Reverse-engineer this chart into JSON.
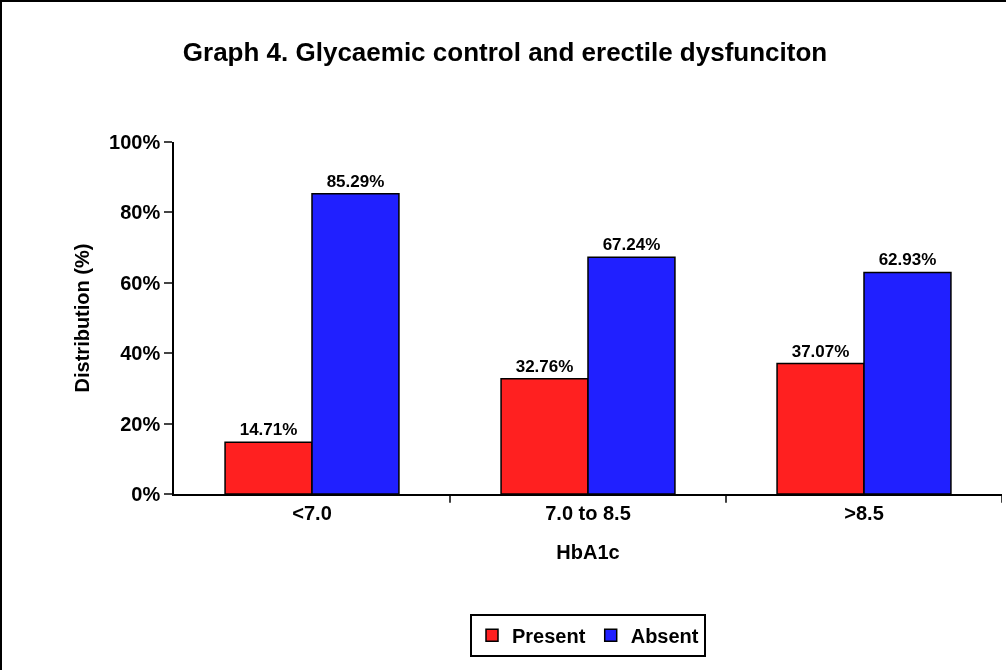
{
  "chart_data": {
    "type": "bar",
    "title": "Graph 4. Glycaemic control and erectile dysfunciton",
    "xlabel": "HbA1c",
    "ylabel": "Distribution (%)",
    "categories": [
      "<7.0",
      "7.0 to 8.5",
      ">8.5"
    ],
    "series": [
      {
        "name": "Present",
        "color": "#ff2020",
        "values": [
          14.71,
          32.76,
          37.07
        ],
        "value_labels": [
          "14.71%",
          "32.76%",
          "37.07%"
        ]
      },
      {
        "name": "Absent",
        "color": "#2020ff",
        "values": [
          85.29,
          67.24,
          62.93
        ],
        "value_labels": [
          "85.29%",
          "67.24%",
          "62.93%"
        ]
      }
    ],
    "ylim": [
      0,
      100
    ],
    "yticks": [
      {
        "value": 0,
        "label": "0%"
      },
      {
        "value": 20,
        "label": "20%"
      },
      {
        "value": 40,
        "label": "40%"
      },
      {
        "value": 60,
        "label": "60%"
      },
      {
        "value": 80,
        "label": "80%"
      },
      {
        "value": 100,
        "label": "100%"
      }
    ],
    "grid": false,
    "legend": "bottom"
  }
}
